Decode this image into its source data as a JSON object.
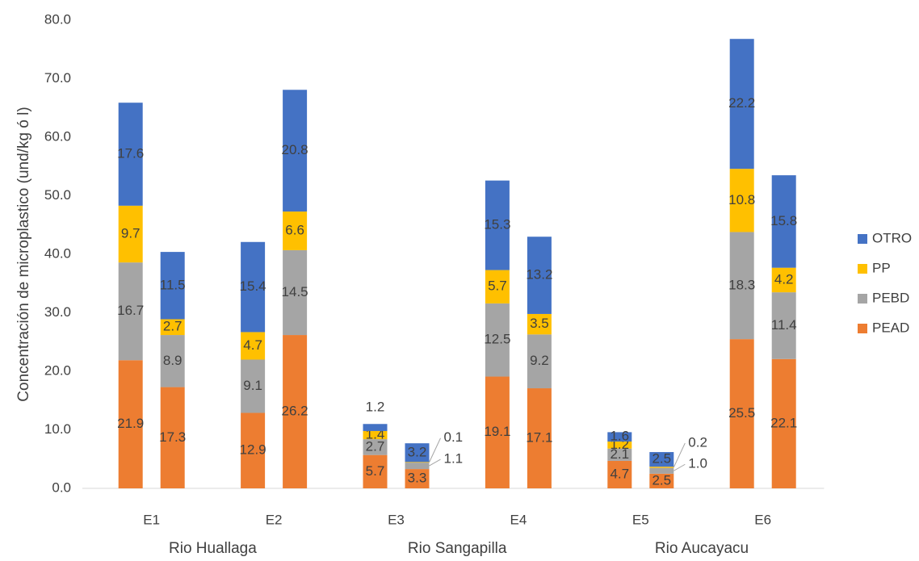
{
  "chart_data": {
    "type": "stacked-bar",
    "y_label": "Concentración de microplastico (und/kg ó l)",
    "categories": [
      "E1",
      "E2",
      "E3",
      "E4",
      "E5",
      "E6"
    ],
    "groups": [
      "Rio  Huallaga",
      "Rio Sangapilla",
      "Rio Aucayacu"
    ],
    "series": [
      {
        "name": "PEAD",
        "color": "#ed7d31",
        "values": [
          [
            21.9,
            17.3
          ],
          [
            12.9,
            26.2
          ],
          [
            5.7,
            3.3
          ],
          [
            19.1,
            17.1
          ],
          [
            4.7,
            2.5
          ],
          [
            25.5,
            22.1
          ]
        ],
        "value_labels": [
          [
            "21.9",
            "17.3"
          ],
          [
            "12.9",
            "26.2"
          ],
          [
            "5.7",
            "3.3"
          ],
          [
            "19.1",
            "17.1"
          ],
          [
            "4.7",
            "2.5"
          ],
          [
            "25.5",
            "22.1"
          ]
        ]
      },
      {
        "name": "PEBD",
        "color": "#a5a5a5",
        "values": [
          [
            16.7,
            8.9
          ],
          [
            9.1,
            14.5
          ],
          [
            2.7,
            1.1
          ],
          [
            12.5,
            9.2
          ],
          [
            2.1,
            1.0
          ],
          [
            18.3,
            11.4
          ]
        ],
        "value_labels": [
          [
            "16.7",
            "8.9"
          ],
          [
            "9.1",
            "14.5"
          ],
          [
            "2.7",
            "1.1"
          ],
          [
            "12.5",
            "9.2"
          ],
          [
            "2.1",
            "1.0"
          ],
          [
            "18.3",
            "11.4"
          ]
        ]
      },
      {
        "name": "PP",
        "color": "#ffc000",
        "values": [
          [
            9.7,
            2.7
          ],
          [
            4.7,
            6.6
          ],
          [
            1.4,
            0.1
          ],
          [
            5.7,
            3.5
          ],
          [
            1.2,
            0.2
          ],
          [
            10.8,
            4.2
          ]
        ],
        "value_labels": [
          [
            "9.7",
            "2.7"
          ],
          [
            "4.7",
            "6.6"
          ],
          [
            "1.4",
            "0.1"
          ],
          [
            "5.7",
            "3.5"
          ],
          [
            "1.2",
            "0.2"
          ],
          [
            "10.8",
            "4.2"
          ]
        ]
      },
      {
        "name": "OTRO",
        "color": "#4472c4",
        "values": [
          [
            17.6,
            11.5
          ],
          [
            15.4,
            20.8
          ],
          [
            1.2,
            3.2
          ],
          [
            15.3,
            13.2
          ],
          [
            1.6,
            2.5
          ],
          [
            22.2,
            15.8
          ]
        ],
        "value_labels": [
          [
            "17.6",
            "11.5"
          ],
          [
            "15.4",
            "20.8"
          ],
          [
            "1.2",
            "3.2"
          ],
          [
            "15.3",
            "13.2"
          ],
          [
            "1.6",
            "2.5"
          ],
          [
            "22.2",
            "15.8"
          ]
        ]
      }
    ],
    "ylim": [
      0,
      80
    ],
    "yticks": [
      {
        "value": 0,
        "label": "0.0"
      },
      {
        "value": 10,
        "label": "10.0"
      },
      {
        "value": 20,
        "label": "20.0"
      },
      {
        "value": 30,
        "label": "30.0"
      },
      {
        "value": 40,
        "label": "40.0"
      },
      {
        "value": 50,
        "label": "50.0"
      },
      {
        "value": 60,
        "label": "60.0"
      },
      {
        "value": 70,
        "label": "70.0"
      },
      {
        "value": 80,
        "label": "80.0"
      }
    ],
    "legend": "right"
  }
}
